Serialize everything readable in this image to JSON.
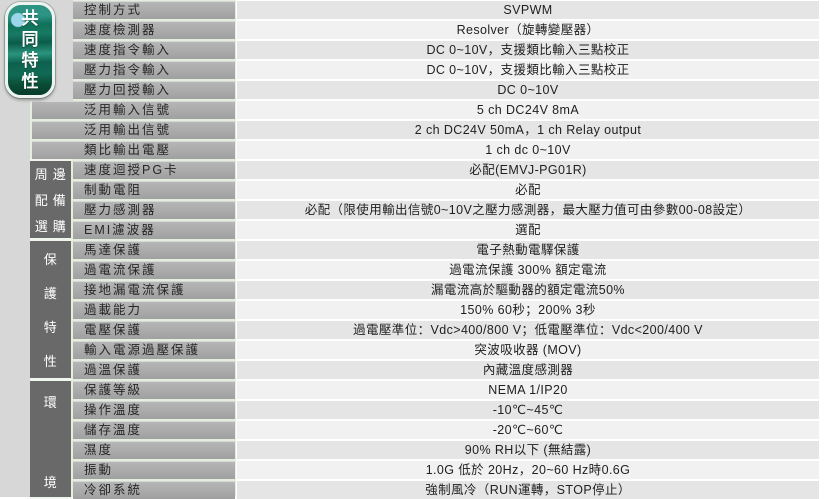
{
  "badge": {
    "label": "共同特性"
  },
  "sections": {
    "common": {
      "label": "共同特性",
      "row_start": 1,
      "row_end": 8
    },
    "peripheral": {
      "label": "周邊配備選購",
      "lines": [
        "周邊",
        "配備",
        "選購"
      ],
      "row_start": 9,
      "row_end": 12
    },
    "protection": {
      "label": "保護特性",
      "row_start": 13,
      "row_end": 19
    },
    "environment": {
      "label": "環境",
      "row_start": 20,
      "row_end": 25
    }
  },
  "rows": [
    {
      "label": "控制方式",
      "value": "SVPWM"
    },
    {
      "label": "速度檢測器",
      "value": "Resolver（旋轉變壓器）"
    },
    {
      "label": "速度指令輸入",
      "value": "DC 0~10V，支援類比輸入三點校正"
    },
    {
      "label": "壓力指令輸入",
      "value": "DC 0~10V，支援類比輸入三點校正"
    },
    {
      "label": "壓力回授輸入",
      "value": "DC 0~10V"
    },
    {
      "label": "泛用輸入信號",
      "value": "5 ch DC24V 8mA"
    },
    {
      "label": "泛用輸出信號",
      "value": "2 ch DC24V 50mA，1 ch Relay output"
    },
    {
      "label": "類比輸出電壓",
      "value": "1 ch dc 0~10V"
    },
    {
      "label": "速度迴授PG卡",
      "value": "必配(EMVJ-PG01R)"
    },
    {
      "label": "制動電阻",
      "value": "必配"
    },
    {
      "label": "壓力感測器",
      "value": "必配（限使用輸出信號0~10V之壓力感測器，最大壓力值可由參數00-08設定）"
    },
    {
      "label": "EMI濾波器",
      "value": "選配"
    },
    {
      "label": "馬達保護",
      "value": "電子熱動電驛保護"
    },
    {
      "label": "過電流保護",
      "value": "過電流保護 300% 額定電流"
    },
    {
      "label": "接地漏電流保護",
      "value": "漏電流高於驅動器的額定電流50%"
    },
    {
      "label": "過載能力",
      "value": "150% 60秒；200% 3秒"
    },
    {
      "label": "電壓保護",
      "value": "過電壓準位：Vdc>400/800 V；低電壓準位：Vdc<200/400 V"
    },
    {
      "label": "輸入電源過壓保護",
      "value": "突波吸收器 (MOV)"
    },
    {
      "label": "過溫保護",
      "value": "內藏溫度感測器"
    },
    {
      "label": "保護等級",
      "value": "NEMA 1/IP20"
    },
    {
      "label": "操作溫度",
      "value": "-10℃~45℃"
    },
    {
      "label": "儲存溫度",
      "value": "-20℃~60℃"
    },
    {
      "label": "濕度",
      "value": "90% RH以下 (無結露)"
    },
    {
      "label": "振動",
      "value": "1.0G 低於 20Hz，20~60 Hz時0.6G"
    },
    {
      "label": "冷卻系統",
      "value": "強制風冷（RUN運轉，STOP停止）"
    }
  ],
  "colors": {
    "left-margin": "#d7d7d7",
    "label-gap": "#e3efdc",
    "label-top": "#b7b7b7",
    "label-bottom": "#a0a0a0",
    "label-text": "#262626",
    "section-bg": "#696969",
    "value-odd": "#e5e5e5",
    "value-even": "#f1f1f1",
    "value-text": "#1f1f1f",
    "badge-dot": "#9bd7e8"
  }
}
